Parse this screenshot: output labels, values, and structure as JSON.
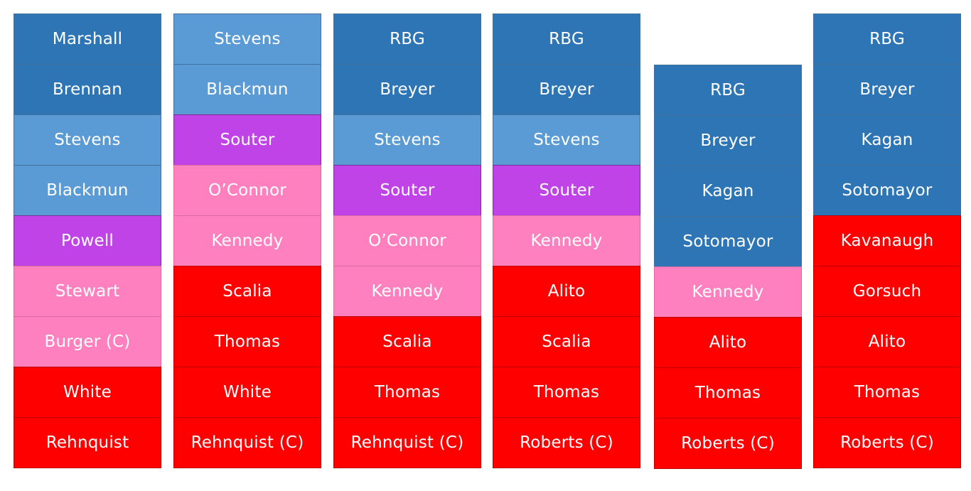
{
  "colors": {
    "darkblue": "#2e75b6",
    "lightblue": "#5b9bd5",
    "purple": "#c043e8",
    "pink": "#ff80bf",
    "red": "#ff0000"
  },
  "columns": [
    {
      "cells": [
        {
          "label": "Marshall",
          "color": "darkblue"
        },
        {
          "label": "Brennan",
          "color": "darkblue"
        },
        {
          "label": "Stevens",
          "color": "lightblue"
        },
        {
          "label": "Blackmun",
          "color": "lightblue"
        },
        {
          "label": "Powell",
          "color": "purple"
        },
        {
          "label": "Stewart",
          "color": "pink"
        },
        {
          "label": "Burger (C)",
          "color": "pink"
        },
        {
          "label": "White",
          "color": "red"
        },
        {
          "label": "Rehnquist",
          "color": "red"
        }
      ]
    },
    {
      "cells": [
        {
          "label": "Stevens",
          "color": "lightblue"
        },
        {
          "label": "Blackmun",
          "color": "lightblue"
        },
        {
          "label": "Souter",
          "color": "purple"
        },
        {
          "label": "O’Connor",
          "color": "pink"
        },
        {
          "label": "Kennedy",
          "color": "pink"
        },
        {
          "label": "Scalia",
          "color": "red"
        },
        {
          "label": "Thomas",
          "color": "red"
        },
        {
          "label": "White",
          "color": "red"
        },
        {
          "label": "Rehnquist (C)",
          "color": "red"
        }
      ]
    },
    {
      "cells": [
        {
          "label": "RBG",
          "color": "darkblue"
        },
        {
          "label": "Breyer",
          "color": "darkblue"
        },
        {
          "label": "Stevens",
          "color": "lightblue"
        },
        {
          "label": "Souter",
          "color": "purple"
        },
        {
          "label": "O’Connor",
          "color": "pink"
        },
        {
          "label": "Kennedy",
          "color": "pink"
        },
        {
          "label": "Scalia",
          "color": "red"
        },
        {
          "label": "Thomas",
          "color": "red"
        },
        {
          "label": "Rehnquist (C)",
          "color": "red"
        }
      ]
    },
    {
      "cells": [
        {
          "label": "RBG",
          "color": "darkblue"
        },
        {
          "label": "Breyer",
          "color": "darkblue"
        },
        {
          "label": "Stevens",
          "color": "lightblue"
        },
        {
          "label": "Souter",
          "color": "purple"
        },
        {
          "label": "Kennedy",
          "color": "pink"
        },
        {
          "label": "Alito",
          "color": "red"
        },
        {
          "label": "Scalia",
          "color": "red"
        },
        {
          "label": "Thomas",
          "color": "red"
        },
        {
          "label": "Roberts (C)",
          "color": "red"
        }
      ]
    },
    {
      "cells": [
        {
          "label": "RBG",
          "color": "darkblue"
        },
        {
          "label": "Breyer",
          "color": "darkblue"
        },
        {
          "label": "Kagan",
          "color": "darkblue"
        },
        {
          "label": "Sotomayor",
          "color": "darkblue"
        },
        {
          "label": "Kennedy",
          "color": "pink"
        },
        {
          "label": "Alito",
          "color": "red"
        },
        {
          "label": "Thomas",
          "color": "red"
        },
        {
          "label": "Roberts (C)",
          "color": "red"
        }
      ]
    },
    {
      "cells": [
        {
          "label": "RBG",
          "color": "darkblue"
        },
        {
          "label": "Breyer",
          "color": "darkblue"
        },
        {
          "label": "Kagan",
          "color": "darkblue"
        },
        {
          "label": "Sotomayor",
          "color": "darkblue"
        },
        {
          "label": "Kavanaugh",
          "color": "red"
        },
        {
          "label": "Gorsuch",
          "color": "red"
        },
        {
          "label": "Alito",
          "color": "red"
        },
        {
          "label": "Thomas",
          "color": "red"
        },
        {
          "label": "Roberts (C)",
          "color": "red"
        }
      ]
    }
  ]
}
